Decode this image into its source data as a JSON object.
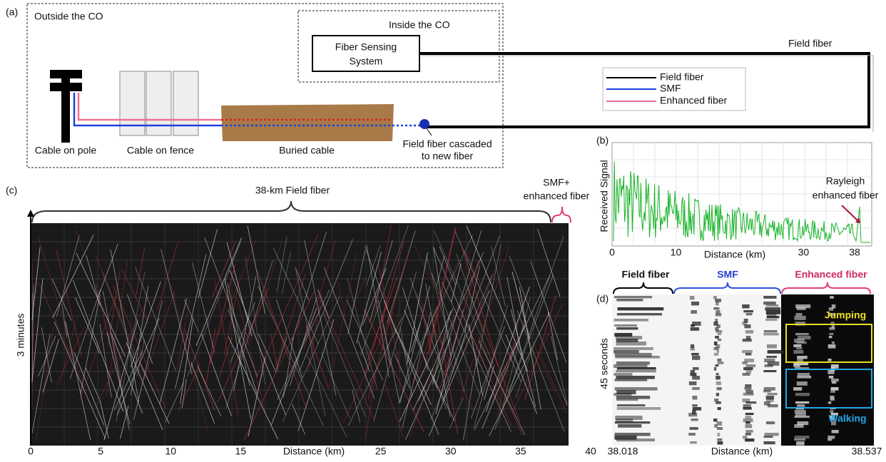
{
  "panel_a": {
    "label": "(a)",
    "outside_label": "Outside the CO",
    "inside_label": "Inside the CO",
    "system": [
      "Fiber Sensing",
      "System"
    ],
    "field_fiber_label": "Field fiber",
    "legend": [
      "Field fiber",
      "SMF",
      "Enhanced fiber"
    ],
    "captions": {
      "pole": "Cable on pole",
      "fence": "Cable on fence",
      "buried": "Buried cable",
      "cascade": [
        "Field fiber cascaded",
        "to new fiber"
      ]
    }
  },
  "panel_b": {
    "label": "(b)",
    "y_label": "Received Signal",
    "x_label": "Distance (km)",
    "annotation": [
      "Rayleigh",
      "enhanced fiber"
    ],
    "xlim": [
      0,
      38
    ],
    "xticks": [
      0,
      10,
      30,
      38
    ]
  },
  "panel_c": {
    "label": "(c)",
    "brace_field": "38-km Field fiber",
    "brace_smf": [
      "SMF+",
      "enhanced fiber"
    ],
    "y_label": "3 minutes",
    "x_label": "Distance (km)",
    "xlim": [
      0,
      40
    ],
    "xticks": [
      0,
      5,
      10,
      15,
      25,
      30,
      35,
      40
    ]
  },
  "panel_d": {
    "label": "(d)",
    "braces": [
      "Field fiber",
      "SMF",
      "Enhanced fiber"
    ],
    "y_label": "45 seconds",
    "x_label": "Distance (km)",
    "xlim": [
      38.018,
      38.537
    ],
    "xticks": [
      38.018,
      38.537
    ],
    "boxes": [
      "Jumping",
      "Walking"
    ]
  }
}
